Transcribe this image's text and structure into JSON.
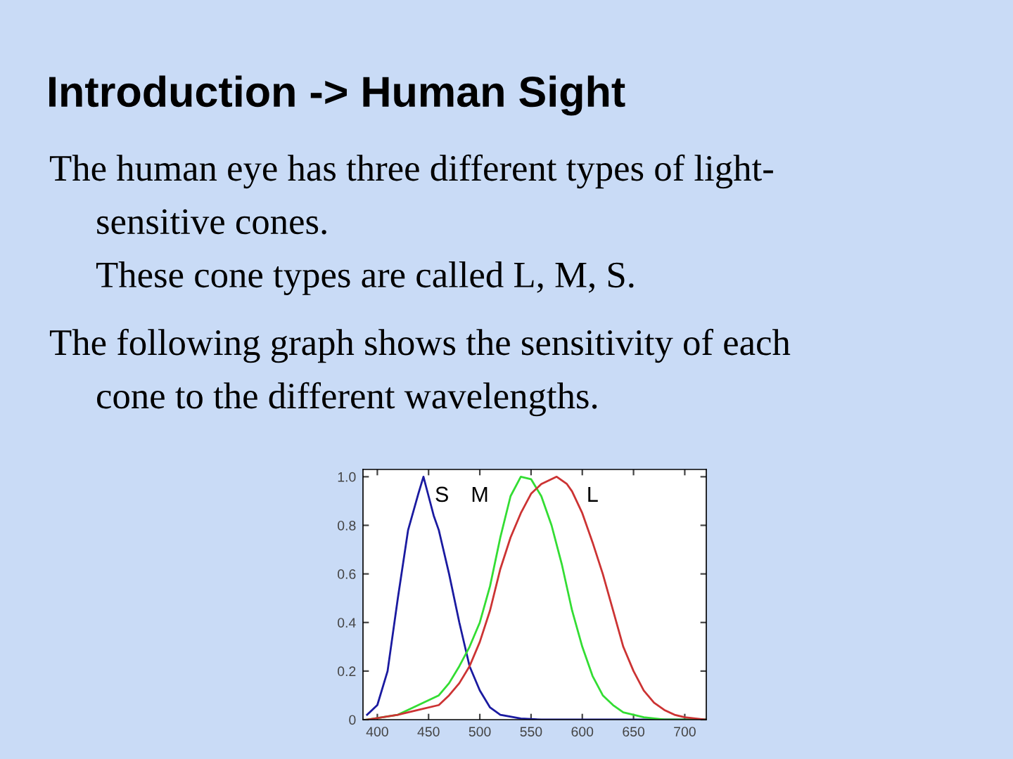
{
  "chart_data": {
    "type": "line",
    "title": "Introduction -> Human Sight",
    "annotations": [
      "The human eye has three different types of light-",
      "sensitive cones.",
      "These cone types are called L, M, S.",
      "The following graph shows the sensitivity of each",
      "cone to the different wavelengths."
    ],
    "series": [
      {
        "name": "S",
        "color": "#1a1aa0",
        "x": [
          390,
          400,
          410,
          420,
          430,
          440,
          445,
          450,
          455,
          460,
          470,
          480,
          490,
          500,
          510,
          520,
          540,
          560,
          720
        ],
        "values": [
          0.02,
          0.06,
          0.2,
          0.5,
          0.78,
          0.93,
          1.0,
          0.92,
          0.84,
          0.78,
          0.6,
          0.4,
          0.22,
          0.12,
          0.05,
          0.02,
          0.005,
          0,
          0
        ]
      },
      {
        "name": "M",
        "color": "#33dd33",
        "x": [
          390,
          420,
          440,
          460,
          470,
          480,
          490,
          500,
          510,
          520,
          530,
          540,
          550,
          560,
          570,
          580,
          590,
          600,
          610,
          620,
          630,
          640,
          660,
          680,
          720
        ],
        "values": [
          0,
          0.02,
          0.06,
          0.1,
          0.15,
          0.22,
          0.3,
          0.4,
          0.55,
          0.75,
          0.92,
          1.0,
          0.99,
          0.92,
          0.8,
          0.64,
          0.45,
          0.3,
          0.18,
          0.1,
          0.06,
          0.03,
          0.01,
          0,
          0
        ]
      },
      {
        "name": "L",
        "color": "#cc3333",
        "x": [
          390,
          420,
          440,
          460,
          470,
          480,
          490,
          500,
          510,
          520,
          530,
          540,
          550,
          560,
          575,
          585,
          590,
          600,
          610,
          620,
          630,
          640,
          650,
          660,
          670,
          680,
          690,
          700,
          720
        ],
        "values": [
          0,
          0.02,
          0.04,
          0.06,
          0.1,
          0.15,
          0.22,
          0.32,
          0.45,
          0.62,
          0.75,
          0.85,
          0.93,
          0.97,
          1.0,
          0.97,
          0.94,
          0.85,
          0.73,
          0.6,
          0.45,
          0.3,
          0.2,
          0.12,
          0.07,
          0.04,
          0.02,
          0.01,
          0
        ]
      }
    ],
    "xlim": [
      386,
      721
    ],
    "ylim": [
      0,
      1.03
    ],
    "xticks": [
      400,
      450,
      500,
      550,
      600,
      650,
      700
    ],
    "yticks": [
      0,
      0.2,
      0.4,
      0.6,
      0.8,
      {
        "value": 1,
        "label": "1.0"
      }
    ],
    "grid": false,
    "marker": "none",
    "line_style": "solid"
  }
}
